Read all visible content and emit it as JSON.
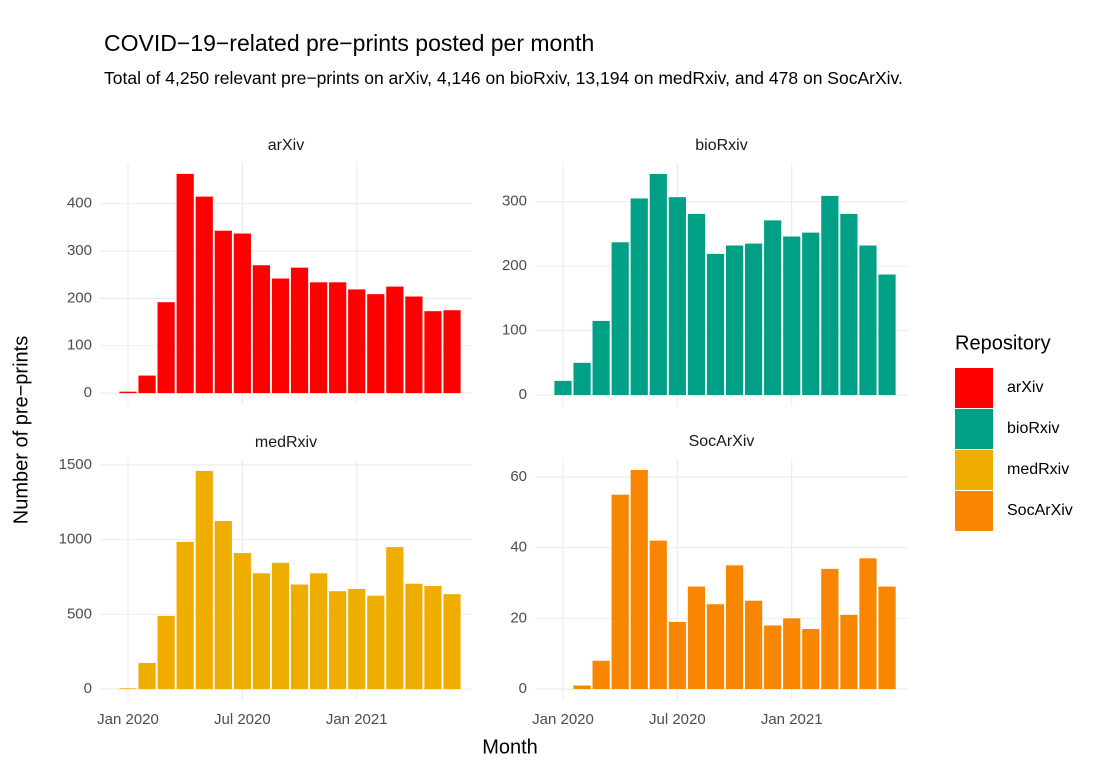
{
  "chart_data": {
    "type": "bar",
    "title": "COVID−19−related pre−prints posted per month",
    "subtitle": "Total of 4,250 relevant pre−prints on arXiv, 4,146 on bioRxiv, 13,194 on medRxiv, and 478 on SocArXiv.",
    "xlabel": "Month",
    "ylabel": "Number of pre−prints",
    "legend_title": "Repository",
    "x": [
      "2020-01",
      "2020-02",
      "2020-03",
      "2020-04",
      "2020-05",
      "2020-06",
      "2020-07",
      "2020-08",
      "2020-09",
      "2020-10",
      "2020-11",
      "2020-12",
      "2021-01",
      "2021-02",
      "2021-03",
      "2021-04",
      "2021-05",
      "2021-06"
    ],
    "xticks": [
      {
        "value": "2020-01",
        "label": "Jan 2020"
      },
      {
        "value": "2020-07",
        "label": "Jul 2020"
      },
      {
        "value": "2021-01",
        "label": "Jan 2021"
      }
    ],
    "grid": true,
    "facets": [
      {
        "name": "arXiv",
        "color": "#ff0000",
        "values": [
          3,
          37,
          192,
          463,
          415,
          343,
          337,
          270,
          242,
          265,
          234,
          234,
          219,
          209,
          225,
          204,
          173,
          175
        ],
        "ylim": [
          -23,
          486
        ],
        "yticks": [
          0,
          100,
          200,
          300,
          400
        ]
      },
      {
        "name": "bioRxiv",
        "color": "#00a087",
        "values": [
          22,
          50,
          115,
          237,
          305,
          343,
          307,
          281,
          219,
          232,
          235,
          271,
          246,
          252,
          309,
          281,
          232,
          187
        ],
        "ylim": [
          -17,
          360
        ],
        "yticks": [
          0,
          100,
          200,
          300
        ]
      },
      {
        "name": "medRxiv",
        "color": "#efad00",
        "values": [
          5,
          175,
          490,
          985,
          1460,
          1125,
          910,
          775,
          845,
          700,
          775,
          655,
          670,
          625,
          950,
          705,
          690,
          635
        ],
        "ylim": [
          -73,
          1533
        ],
        "yticks": [
          0,
          500,
          1000,
          1500
        ]
      },
      {
        "name": "SocArXiv",
        "color": "#f88600",
        "values": [
          null,
          1,
          8,
          55,
          62,
          42,
          19,
          29,
          24,
          35,
          25,
          18,
          20,
          17,
          34,
          21,
          37,
          29
        ],
        "ylim": [
          -3.1,
          65.1
        ],
        "yticks": [
          0,
          20,
          40,
          60
        ]
      }
    ]
  }
}
